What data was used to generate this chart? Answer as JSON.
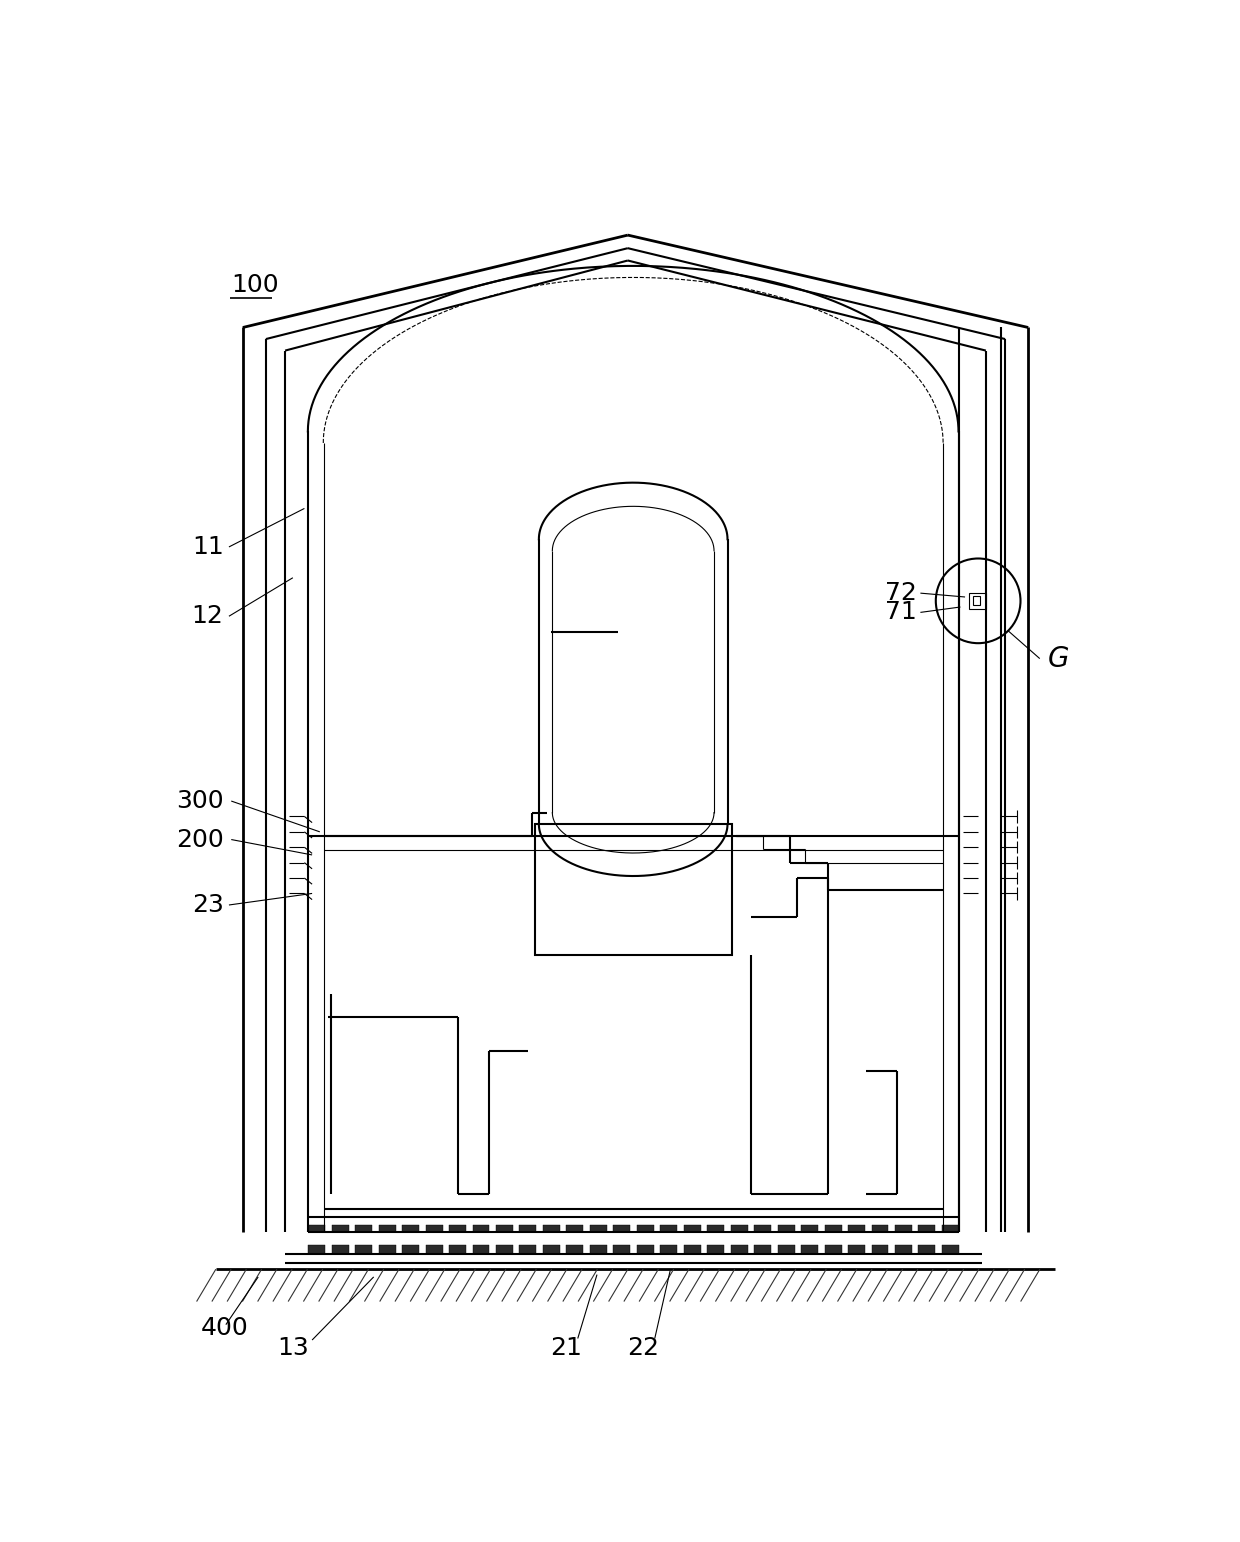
{
  "background_color": "#ffffff",
  "line_color": "#000000",
  "lw_thick": 2.0,
  "lw_med": 1.5,
  "lw_thin": 0.8,
  "fig_width": 12.4,
  "fig_height": 15.42
}
